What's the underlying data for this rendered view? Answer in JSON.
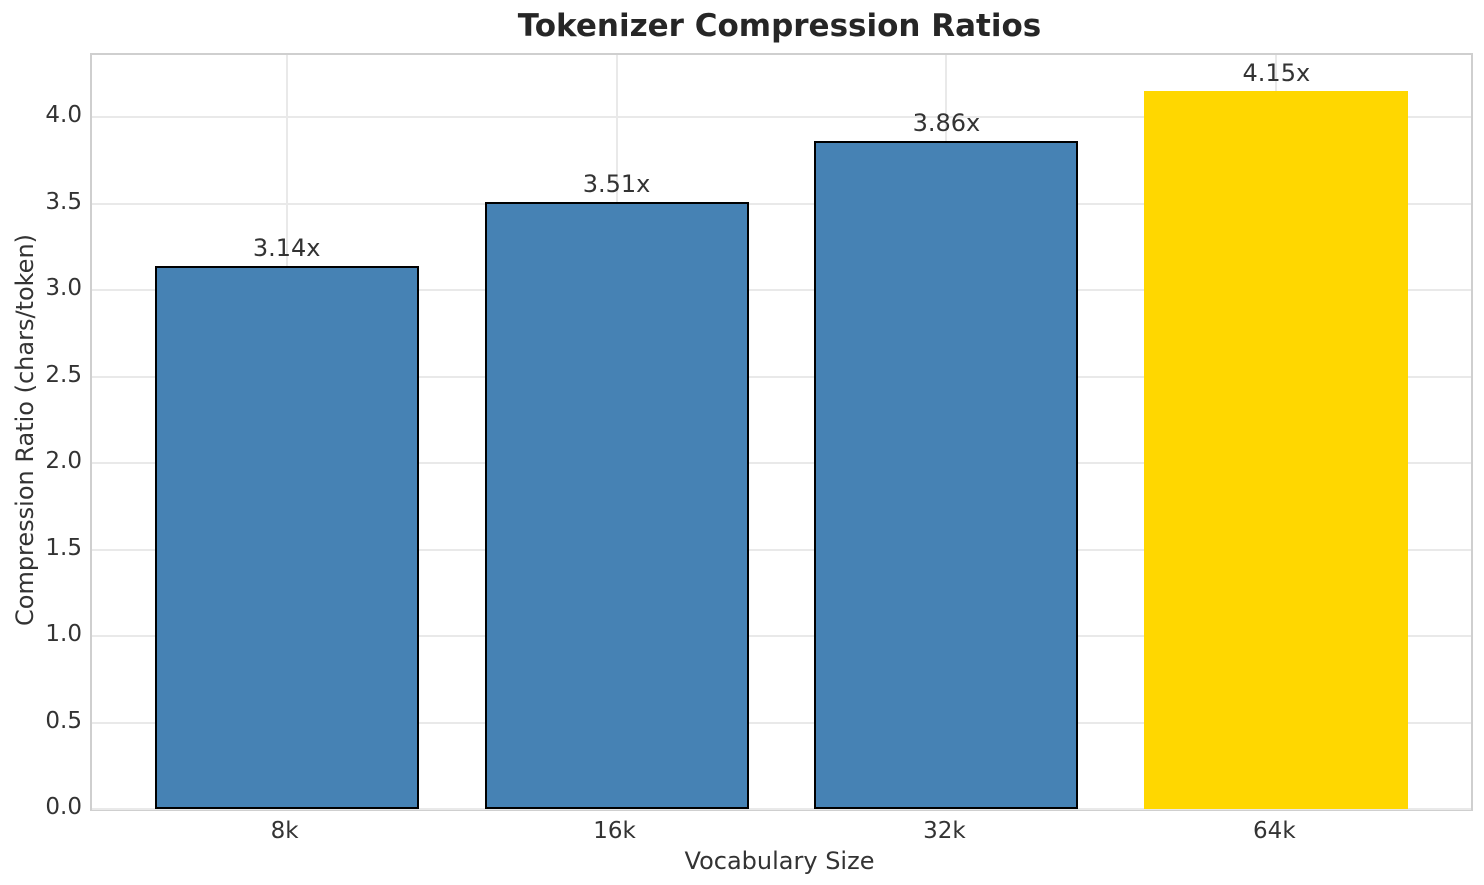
{
  "chart_data": {
    "type": "bar",
    "title": "Tokenizer Compression Ratios",
    "xlabel": "Vocabulary Size",
    "ylabel": "Compression Ratio (chars/token)",
    "categories": [
      "8k",
      "16k",
      "32k",
      "64k"
    ],
    "values": [
      3.14,
      3.51,
      3.86,
      4.15
    ],
    "value_labels": [
      "3.14x",
      "3.51x",
      "3.86x",
      "4.15x"
    ],
    "bar_colors": [
      "#4682b4",
      "#4682b4",
      "#4682b4",
      "#ffd700"
    ],
    "bar_edge_colors": [
      "#000000",
      "#000000",
      "#000000",
      "#ffd700"
    ],
    "yticks": [
      0.0,
      0.5,
      1.0,
      1.5,
      2.0,
      2.5,
      3.0,
      3.5,
      4.0
    ],
    "ytick_labels": [
      "0.0",
      "0.5",
      "1.0",
      "1.5",
      "2.0",
      "2.5",
      "3.0",
      "3.5",
      "4.0"
    ],
    "ylim": [
      0,
      4.36
    ],
    "xlim": [
      -0.59,
      3.59
    ],
    "bar_width": 0.8,
    "grid": true,
    "legend": null,
    "background_color": "#ffffff",
    "grid_color": "#e9e9e9",
    "spine_color": "#cfcfcf",
    "text_color": "#333333",
    "title_color": "#262626"
  }
}
